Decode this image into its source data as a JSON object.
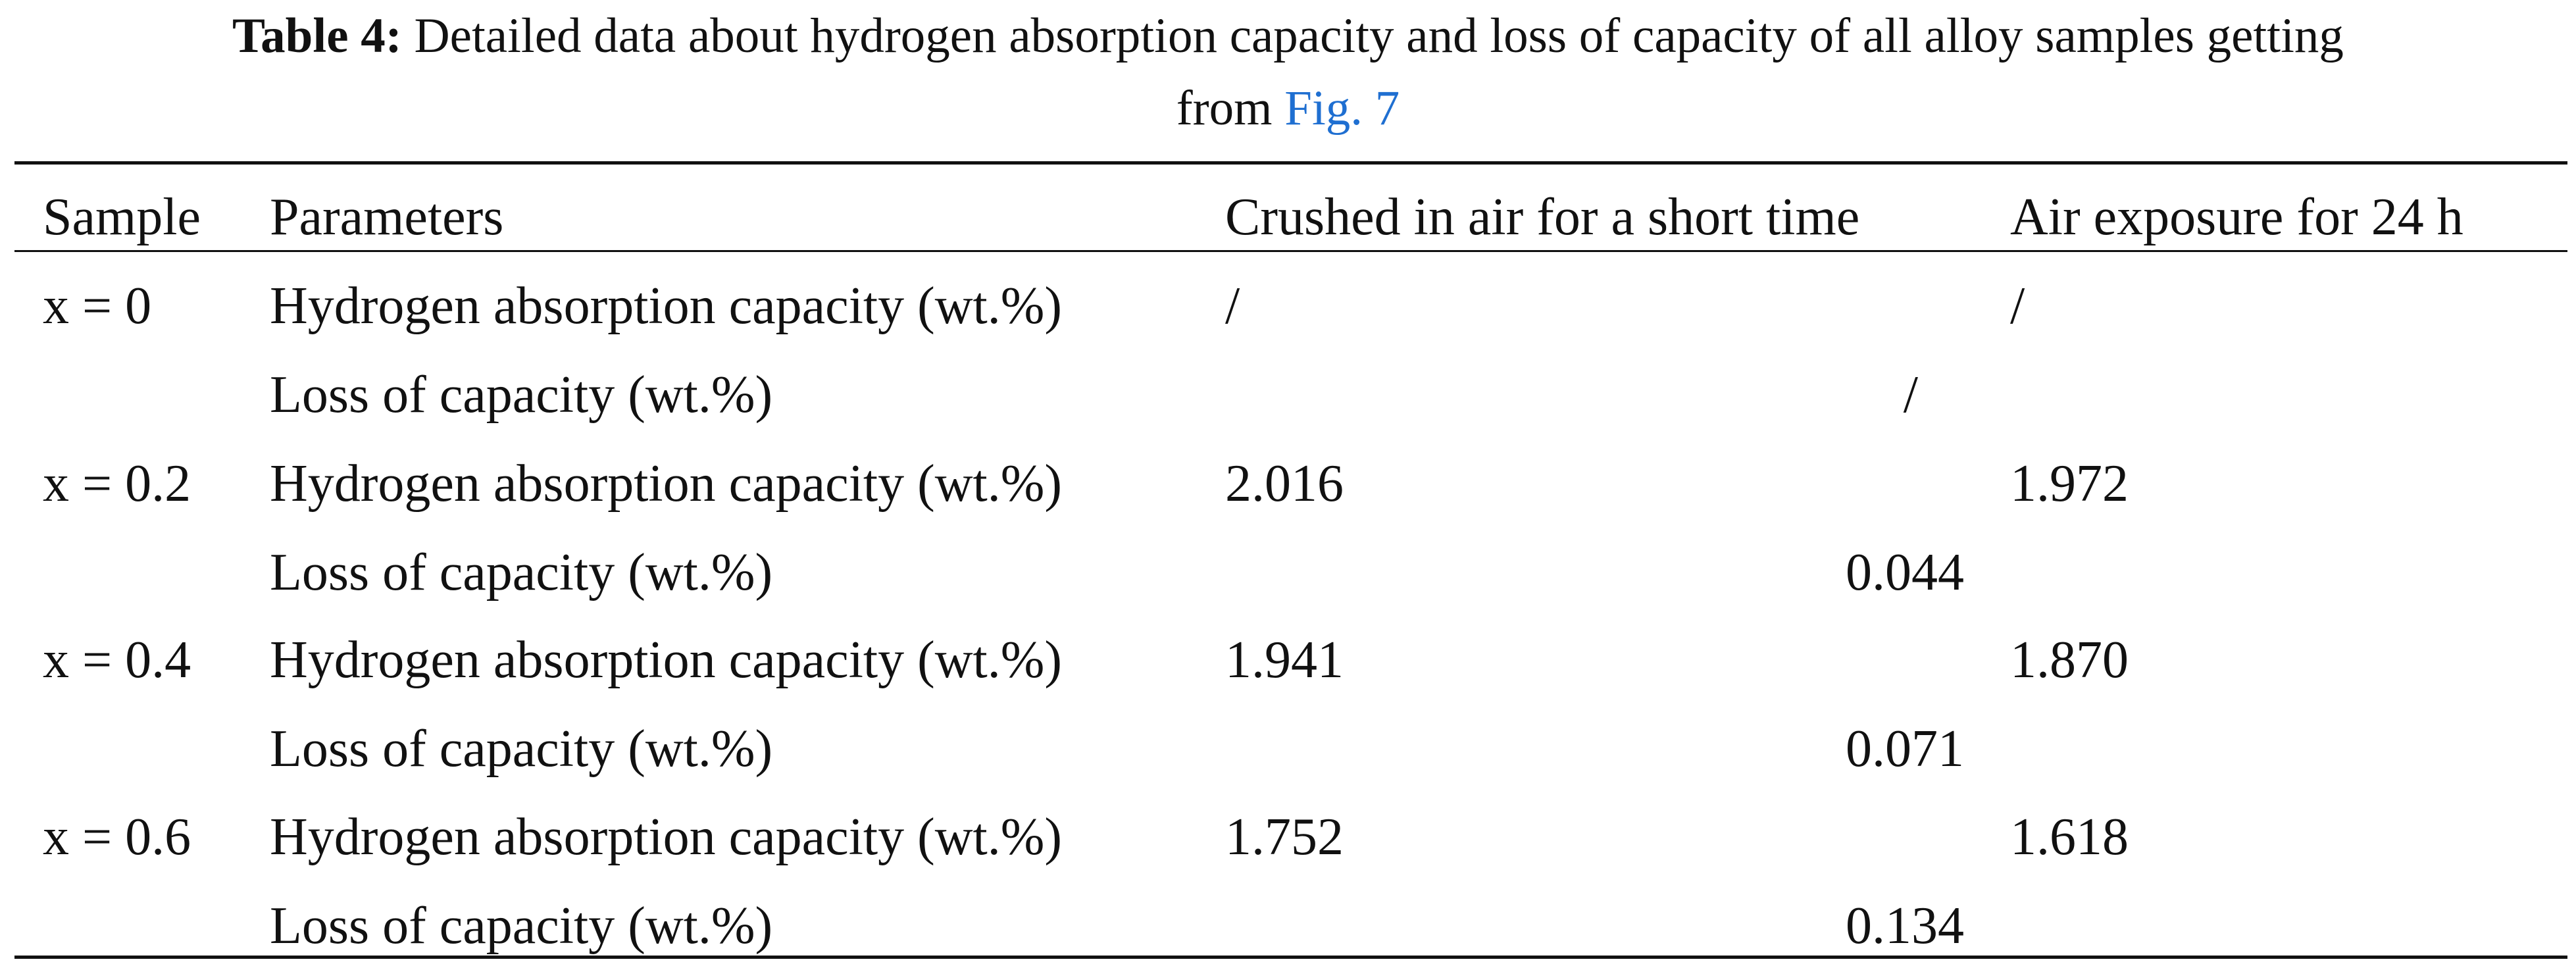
{
  "caption": {
    "label": "Table 4:",
    "text": "Detailed data about hydrogen absorption capacity and loss of capacity of all alloy samples getting",
    "line2_prefix": "from",
    "link": "Fig. 7"
  },
  "table": {
    "headers": {
      "sample": "Sample",
      "parameters": "Parameters",
      "crushed": "Crushed in air for a short time",
      "air": "Air exposure for 24 h"
    },
    "groups": [
      {
        "sample": "x = 0",
        "absorption_label": "Hydrogen absorption capacity (wt.%)",
        "crushed": "/",
        "air": "/",
        "loss_label": "Loss of capacity (wt.%)",
        "loss": "/"
      },
      {
        "sample": "x = 0.2",
        "absorption_label": "Hydrogen absorption capacity (wt.%)",
        "crushed": "2.016",
        "air": "1.972",
        "loss_label": "Loss of capacity (wt.%)",
        "loss": "0.044"
      },
      {
        "sample": "x = 0.4",
        "absorption_label": "Hydrogen absorption capacity (wt.%)",
        "crushed": "1.941",
        "air": "1.870",
        "loss_label": "Loss of capacity (wt.%)",
        "loss": "0.071"
      },
      {
        "sample": "x = 0.6",
        "absorption_label": "Hydrogen absorption capacity (wt.%)",
        "crushed": "1.752",
        "air": "1.618",
        "loss_label": "Loss of capacity (wt.%)",
        "loss": "0.134"
      }
    ]
  }
}
